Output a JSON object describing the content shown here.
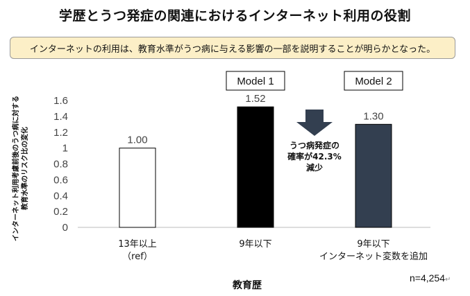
{
  "title": "学歴とうつ発症の関連におけるインターネット利用の役割",
  "subtitle": "インターネットの利用は、教育水準がうつ病に与える影響の一部を説明することが明らかとなった。",
  "n_note": "n=4,254",
  "chart_data": {
    "type": "bar",
    "xlabel": "教育歴",
    "ylabel_lines": [
      "インターネット利用考慮前後のうつ病に対する",
      "教育水準のリスク比の変化"
    ],
    "ylim": [
      0,
      1.6
    ],
    "yticks": [
      "0",
      "0.2",
      "0.4",
      "0.6",
      "0.8",
      "1",
      "1.2",
      "1.4",
      "1.6"
    ],
    "bars": [
      {
        "label_lines": [
          "13年以上",
          "（ref）"
        ],
        "value": 1.0,
        "value_label": "1.00",
        "fill": "#ffffff",
        "model_label": ""
      },
      {
        "label_lines": [
          "9年以下",
          ""
        ],
        "value": 1.52,
        "value_label": "1.52",
        "fill": "#000000",
        "model_label": "Model 1"
      },
      {
        "label_lines": [
          "9年以下",
          "インターネット変数を追加"
        ],
        "value": 1.3,
        "value_label": "1.30",
        "fill": "#333f50",
        "model_label": "Model 2"
      }
    ],
    "annotation_lines": [
      "うつ病発症の",
      "確率が42.3%",
      "減少"
    ],
    "arrow_color": "#333f50"
  }
}
